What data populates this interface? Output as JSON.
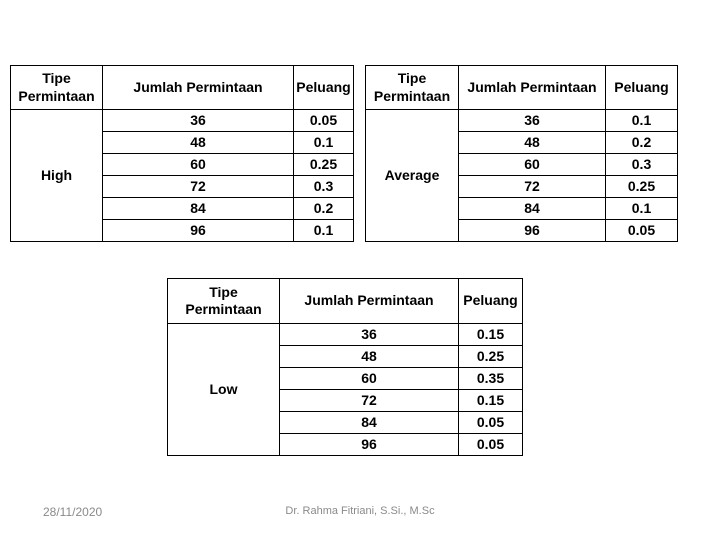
{
  "tables": [
    {
      "name": "high",
      "headers": {
        "type": "Tipe Permintaan",
        "amount": "Jumlah Permintaan",
        "prob": "Peluang"
      },
      "type_value": "High",
      "rows": [
        {
          "amount": "36",
          "prob": "0.05"
        },
        {
          "amount": "48",
          "prob": "0.1"
        },
        {
          "amount": "60",
          "prob": "0.25"
        },
        {
          "amount": "72",
          "prob": "0.3"
        },
        {
          "amount": "84",
          "prob": "0.2"
        },
        {
          "amount": "96",
          "prob": "0.1"
        }
      ]
    },
    {
      "name": "average",
      "headers": {
        "type": "Tipe Permintaan",
        "amount": "Jumlah Permintaan",
        "prob": "Peluang"
      },
      "type_value": "Average",
      "rows": [
        {
          "amount": "36",
          "prob": "0.1"
        },
        {
          "amount": "48",
          "prob": "0.2"
        },
        {
          "amount": "60",
          "prob": "0.3"
        },
        {
          "amount": "72",
          "prob": "0.25"
        },
        {
          "amount": "84",
          "prob": "0.1"
        },
        {
          "amount": "96",
          "prob": "0.05"
        }
      ]
    },
    {
      "name": "low",
      "headers": {
        "type": "Tipe Permintaan",
        "amount": "Jumlah Permintaan",
        "prob": "Peluang"
      },
      "type_value": "Low",
      "rows": [
        {
          "amount": "36",
          "prob": "0.15"
        },
        {
          "amount": "48",
          "prob": "0.25"
        },
        {
          "amount": "60",
          "prob": "0.35"
        },
        {
          "amount": "72",
          "prob": "0.15"
        },
        {
          "amount": "84",
          "prob": "0.05"
        },
        {
          "amount": "96",
          "prob": "0.05"
        }
      ]
    }
  ],
  "footer": {
    "date": "28/11/2020",
    "author": "Dr. Rahma Fitriani, S.Si., M.Sc"
  },
  "colors": {
    "background": "#ffffff",
    "table_text": "#000000",
    "table_border": "#000000",
    "footer_text": "#8a8a8a"
  }
}
